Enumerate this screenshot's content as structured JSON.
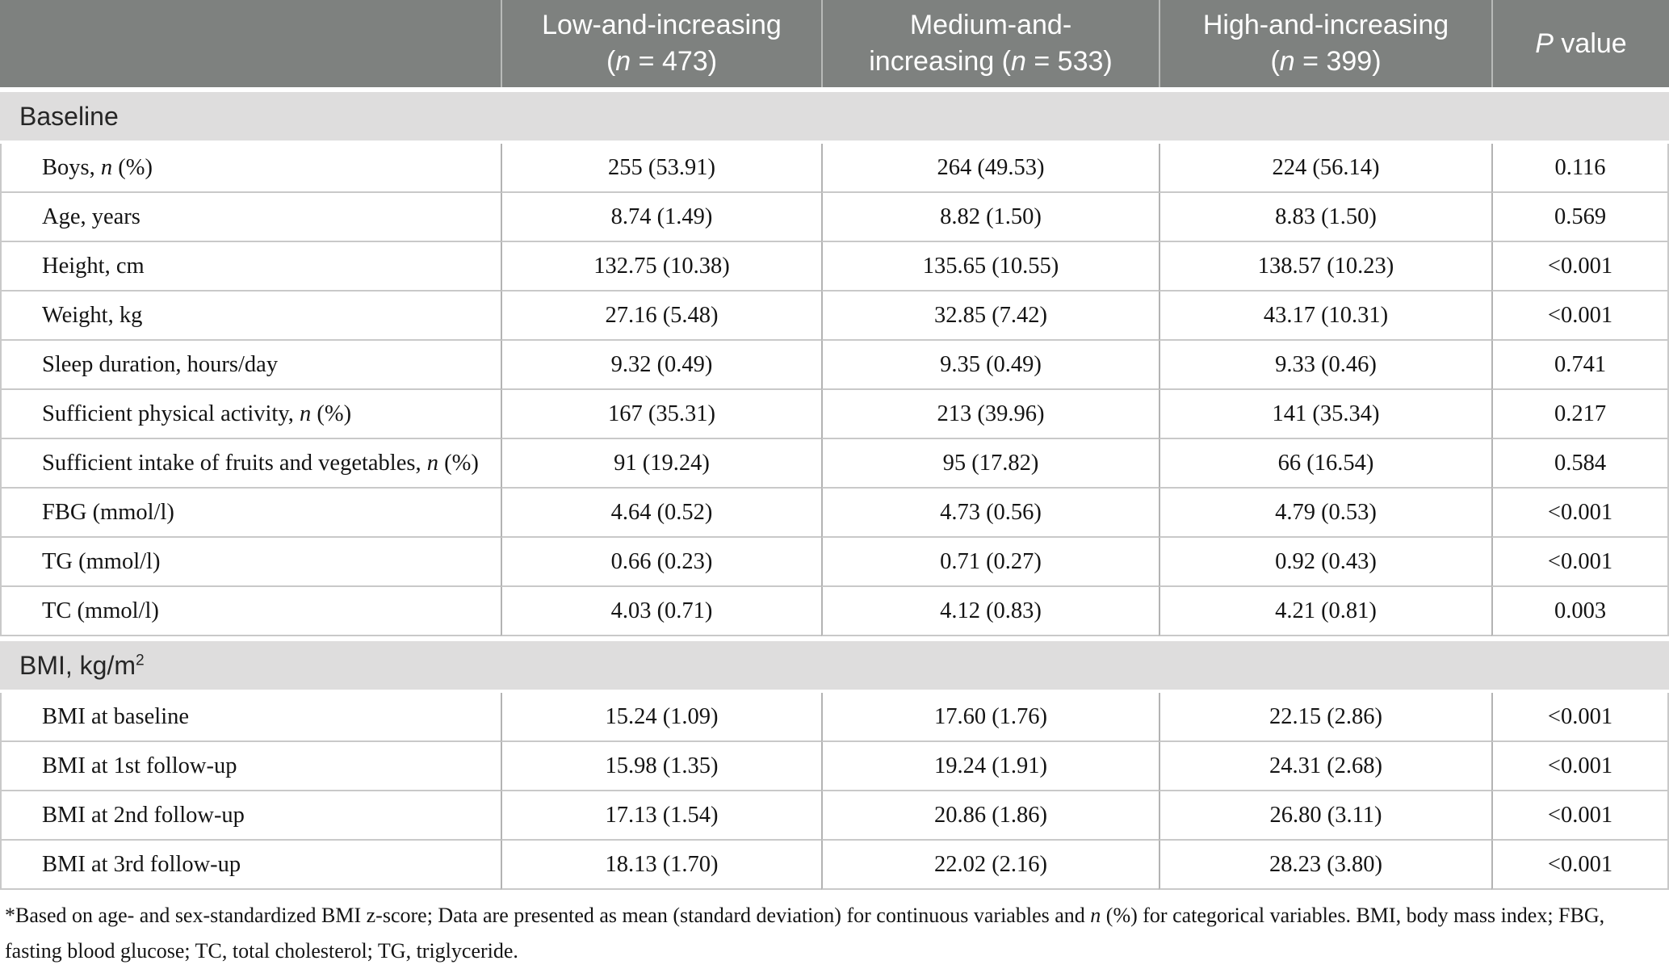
{
  "table": {
    "columns": [
      "",
      "Low-and-increasing\n(_n_ = 473)",
      "Medium-and-\nincreasing (_n_ = 533)",
      "High-and-increasing\n(_n_ = 399)",
      "_P_ value"
    ],
    "sections": [
      {
        "title": "Baseline",
        "rows": [
          {
            "label": "Boys, _n_ (%)",
            "values": [
              "255 (53.91)",
              "264 (49.53)",
              "224 (56.14)",
              "0.116"
            ]
          },
          {
            "label": "Age, years",
            "values": [
              "8.74 (1.49)",
              "8.82 (1.50)",
              "8.83 (1.50)",
              "0.569"
            ]
          },
          {
            "label": "Height, cm",
            "values": [
              "132.75 (10.38)",
              "135.65 (10.55)",
              "138.57 (10.23)",
              "<0.001"
            ]
          },
          {
            "label": "Weight, kg",
            "values": [
              "27.16 (5.48)",
              "32.85 (7.42)",
              "43.17 (10.31)",
              "<0.001"
            ]
          },
          {
            "label": "Sleep duration, hours/day",
            "values": [
              "9.32 (0.49)",
              "9.35 (0.49)",
              "9.33 (0.46)",
              "0.741"
            ]
          },
          {
            "label": "Sufficient physical activity, _n_ (%)",
            "values": [
              "167 (35.31)",
              "213 (39.96)",
              "141 (35.34)",
              "0.217"
            ]
          },
          {
            "label": "Sufficient intake of fruits and vegetables, _n_ (%)",
            "values": [
              "91 (19.24)",
              "95 (17.82)",
              "66 (16.54)",
              "0.584"
            ]
          },
          {
            "label": "FBG (mmol/l)",
            "values": [
              "4.64 (0.52)",
              "4.73 (0.56)",
              "4.79 (0.53)",
              "<0.001"
            ]
          },
          {
            "label": "TG (mmol/l)",
            "values": [
              "0.66 (0.23)",
              "0.71 (0.27)",
              "0.92 (0.43)",
              "<0.001"
            ]
          },
          {
            "label": "TC (mmol/l)",
            "values": [
              "4.03 (0.71)",
              "4.12 (0.83)",
              "4.21 (0.81)",
              "0.003"
            ]
          }
        ]
      },
      {
        "title": "BMI, kg/m^2^",
        "rows": [
          {
            "label": "BMI at baseline",
            "values": [
              "15.24 (1.09)",
              "17.60 (1.76)",
              "22.15 (2.86)",
              "<0.001"
            ]
          },
          {
            "label": "BMI at 1st follow-up",
            "values": [
              "15.98 (1.35)",
              "19.24 (1.91)",
              "24.31 (2.68)",
              "<0.001"
            ]
          },
          {
            "label": "BMI at 2nd follow-up",
            "values": [
              "17.13 (1.54)",
              "20.86 (1.86)",
              "26.80 (3.11)",
              "<0.001"
            ]
          },
          {
            "label": "BMI at 3rd follow-up",
            "values": [
              "18.13 (1.70)",
              "22.02 (2.16)",
              "28.23 (3.80)",
              "<0.001"
            ]
          }
        ]
      }
    ]
  },
  "footnote": "*Based on age- and sex-standardized BMI z-score; Data are presented as mean (standard deviation) for continuous variables and _n_ (%) for categorical variables. BMI, body mass index; FBG, fasting blood glucose; TC, total cholesterol; TG, triglyceride.",
  "colors": {
    "header_bg": "#7e817f",
    "header_text": "#ffffff",
    "section_bg": "#dedddd",
    "hairline": "#c9c9c9",
    "text": "#141414"
  }
}
